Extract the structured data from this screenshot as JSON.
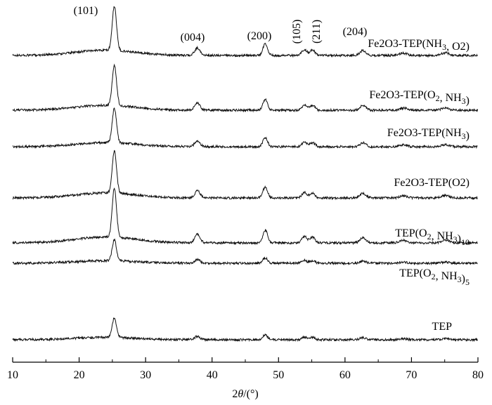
{
  "chart_data": {
    "type": "line",
    "xlabel": "2θ/(°)",
    "xlim": [
      10,
      80
    ],
    "x_ticks": [
      "10",
      "20",
      "30",
      "40",
      "50",
      "60",
      "70",
      "80"
    ],
    "peaks": [
      {
        "label": "(101)",
        "x": 25.3,
        "vertical": false
      },
      {
        "label": "(004)",
        "x": 37.8,
        "vertical": false
      },
      {
        "label": "(200)",
        "x": 48.0,
        "vertical": false
      },
      {
        "label": "(105)",
        "x": 53.9,
        "vertical": true
      },
      {
        "label": "(211)",
        "x": 55.1,
        "vertical": true
      },
      {
        "label": "(204)",
        "x": 62.7,
        "vertical": false
      }
    ],
    "series": [
      {
        "name": "Fe2O3-TEP(NH3, O2)",
        "sub": [
          [
            2,
            "2"
          ],
          [
            3,
            "3"
          ],
          [
            4,
            "3"
          ]
        ],
        "intensity": 0.85
      },
      {
        "name": "Fe2O3-TEP(O2, NH3)",
        "sub": [
          [
            2,
            "2"
          ],
          [
            3,
            "2"
          ],
          [
            4,
            "3"
          ]
        ],
        "intensity": 0.85
      },
      {
        "name": "Fe2O3-TEP(NH3)",
        "sub": [
          [
            2,
            "2"
          ],
          [
            3,
            "3"
          ],
          [
            4,
            "3"
          ]
        ],
        "intensity": 0.55
      },
      {
        "name": "Fe2O3-TEP(O2)",
        "sub": [
          [
            2,
            "2"
          ],
          [
            3,
            "3"
          ],
          [
            4,
            "2"
          ]
        ],
        "intensity": 0.62
      },
      {
        "name": "TEP(O2, NH3)10",
        "sub": [
          [
            1,
            "2"
          ],
          [
            2,
            "3"
          ],
          [
            3,
            "10"
          ]
        ],
        "intensity": 0.9
      },
      {
        "name": "TEP(O2, NH3)5",
        "sub": [
          [
            1,
            "2"
          ],
          [
            2,
            "3"
          ],
          [
            3,
            "5"
          ]
        ],
        "intensity": 0.68
      },
      {
        "name": "TEP",
        "sub": [],
        "intensity": 0.22
      }
    ]
  }
}
